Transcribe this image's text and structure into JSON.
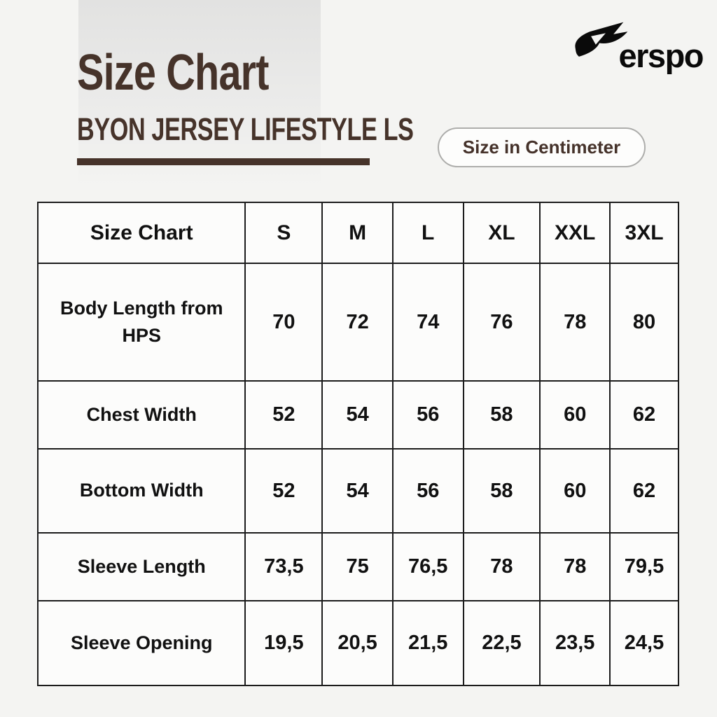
{
  "page": {
    "background_color": "#f4f4f2",
    "accent_color": "#46332a"
  },
  "brand": {
    "name": "erspo",
    "icon": "flash-arrow-icon",
    "color": "#0a0a0a"
  },
  "header": {
    "title": "Size Chart",
    "subtitle": "BYON JERSEY LIFESTYLE LS",
    "unit_badge": "Size in Centimeter"
  },
  "table": {
    "header_row": [
      "Size Chart",
      "S",
      "M",
      "L",
      "XL",
      "XXL",
      "3XL"
    ],
    "rows": [
      {
        "label": "Body Length from HPS",
        "values": [
          "70",
          "72",
          "74",
          "76",
          "78",
          "80"
        ]
      },
      {
        "label": "Chest Width",
        "values": [
          "52",
          "54",
          "56",
          "58",
          "60",
          "62"
        ]
      },
      {
        "label": "Bottom Width",
        "values": [
          "52",
          "54",
          "56",
          "58",
          "60",
          "62"
        ]
      },
      {
        "label": "Sleeve Length",
        "values": [
          "73,5",
          "75",
          "76,5",
          "78",
          "78",
          "79,5"
        ]
      },
      {
        "label": "Sleeve Opening",
        "values": [
          "19,5",
          "20,5",
          "21,5",
          "22,5",
          "23,5",
          "24,5"
        ]
      }
    ]
  }
}
